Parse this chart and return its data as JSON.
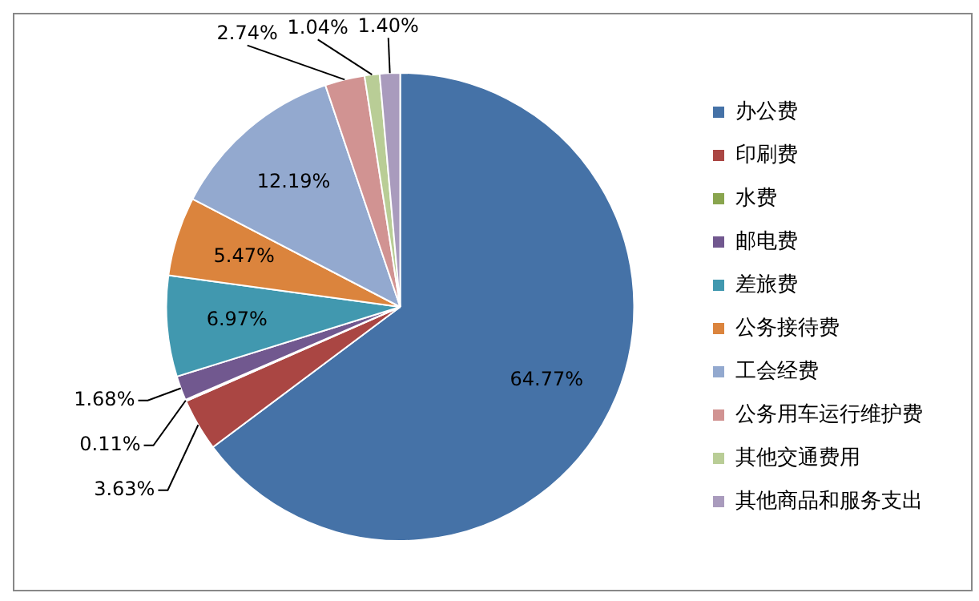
{
  "chart_data": {
    "type": "pie",
    "categories": [
      "办公费",
      "印刷费",
      "水费",
      "邮电费",
      "差旅费",
      "公务接待费",
      "工会经费",
      "公务用车运行维护费",
      "其他交通费用",
      "其他商品和服务支出"
    ],
    "values": [
      64.77,
      3.63,
      0.11,
      1.68,
      6.97,
      5.47,
      12.19,
      2.74,
      1.04,
      1.4
    ],
    "value_labels": [
      "64.77%",
      "3.63%",
      "0.11%",
      "1.68%",
      "6.97%",
      "5.47%",
      "12.19%",
      "2.74%",
      "1.04%",
      "1.40%"
    ],
    "colors": [
      "#4572a7",
      "#aa4643",
      "#89a54e",
      "#71588f",
      "#4198af",
      "#db843d",
      "#93a9cf",
      "#d19392",
      "#b9cd96",
      "#a99bbd"
    ],
    "legend": "right"
  }
}
